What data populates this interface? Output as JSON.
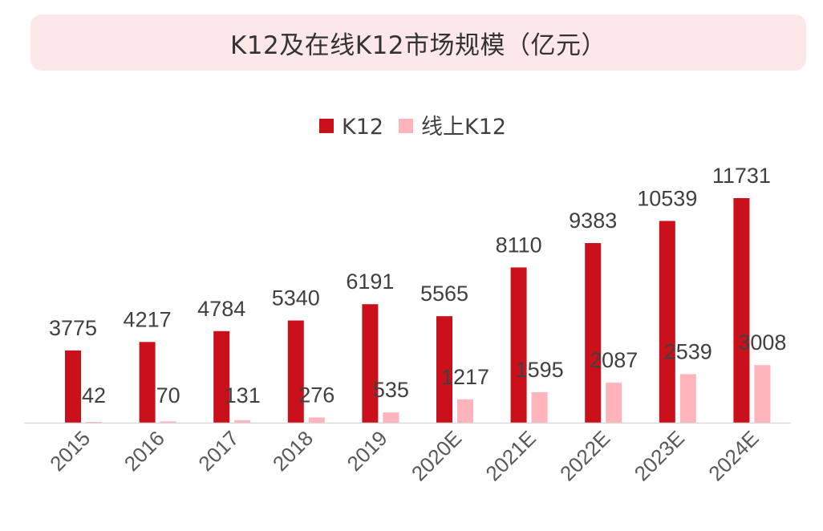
{
  "chart_data": {
    "type": "bar",
    "title": "K12及在线K12市场规模（亿元）",
    "categories": [
      "2015",
      "2016",
      "2017",
      "2018",
      "2019",
      "2020E",
      "2021E",
      "2022E",
      "2023E",
      "2024E"
    ],
    "series": [
      {
        "name": "K12",
        "color": "#c9101b",
        "values": [
          3775,
          4217,
          4784,
          5340,
          6191,
          5565,
          8110,
          9383,
          10539,
          11731
        ]
      },
      {
        "name": "线上K12",
        "color": "#ffb3bb",
        "values": [
          42,
          70,
          131,
          276,
          535,
          1217,
          1595,
          2087,
          2539,
          3008
        ]
      }
    ],
    "ylim": [
      0,
      11731
    ],
    "grid": false,
    "legend_position": "top-center",
    "data_labels": true
  }
}
